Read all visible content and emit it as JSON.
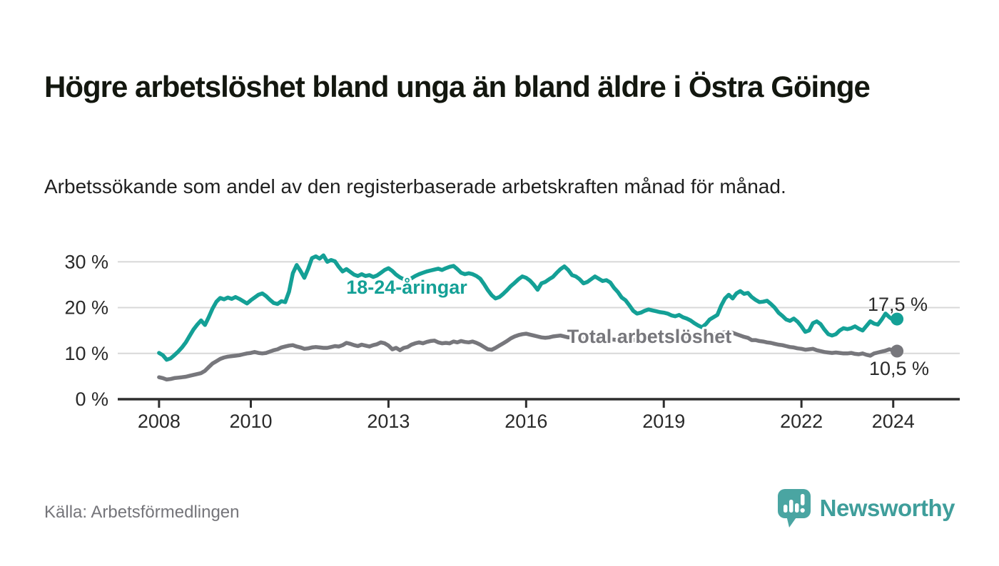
{
  "header": {
    "title": "Högre arbetslöshet bland unga än bland äldre i Östra Göinge",
    "subtitle": "Arbetssökande som andel av den registerbaserade arbetskraften månad för månad."
  },
  "footer": {
    "source": "Källa: Arbetsförmedlingen",
    "brand": "Newsworthy"
  },
  "colors": {
    "youth": "#14a096",
    "total": "#77777c",
    "grid": "#d8d8d8",
    "axis": "#2e2e2e",
    "tick_label": "#2a2a2a",
    "logo_bubble": "#4aa5a2",
    "brand_text": "#3f9e9b",
    "background": "#ffffff"
  },
  "chart_data": {
    "type": "line",
    "title": "",
    "xlabel": "",
    "ylabel": "",
    "grid": "horizontal",
    "legend_position": "inline-labels",
    "x_start": 2008.0,
    "x_step": 0.0833333,
    "xlim": [
      2007.1,
      2025.45
    ],
    "ylim": [
      0,
      35.8
    ],
    "x_ticks": [
      {
        "v": 2008,
        "label": "2008"
      },
      {
        "v": 2010,
        "label": "2010"
      },
      {
        "v": 2013,
        "label": "2013"
      },
      {
        "v": 2016,
        "label": "2016"
      },
      {
        "v": 2019,
        "label": "2019"
      },
      {
        "v": 2022,
        "label": "2022"
      },
      {
        "v": 2024,
        "label": "2024"
      }
    ],
    "y_ticks": [
      {
        "v": 0,
        "label": "0 %"
      },
      {
        "v": 10,
        "label": "10 %"
      },
      {
        "v": 20,
        "label": "20 %"
      },
      {
        "v": 30,
        "label": "30 %"
      }
    ],
    "series": [
      {
        "name": "18-24-åringar",
        "color": "#14a096",
        "end_label": "17,5 %",
        "end_value": 17.5,
        "values": [
          10.1,
          9.6,
          8.6,
          8.9,
          9.6,
          10.4,
          11.3,
          12.4,
          13.8,
          15.2,
          16.3,
          17.2,
          16.2,
          17.9,
          19.8,
          21.3,
          22.1,
          21.8,
          22.2,
          21.9,
          22.3,
          21.9,
          21.4,
          20.9,
          21.6,
          22.2,
          22.8,
          23.1,
          22.5,
          21.7,
          21.0,
          20.8,
          21.4,
          21.2,
          23.5,
          27.5,
          29.3,
          28.0,
          26.5,
          28.5,
          30.8,
          31.2,
          30.7,
          31.4,
          30.0,
          30.4,
          30.1,
          28.9,
          27.9,
          28.4,
          27.8,
          27.2,
          26.9,
          27.3,
          26.9,
          27.1,
          26.7,
          27.0,
          27.6,
          28.2,
          28.6,
          28.0,
          27.2,
          26.6,
          26.2,
          26.0,
          26.4,
          26.9,
          27.3,
          27.6,
          27.9,
          28.1,
          28.3,
          28.5,
          28.2,
          28.6,
          28.9,
          29.1,
          28.4,
          27.6,
          27.3,
          27.5,
          27.3,
          26.9,
          26.3,
          25.1,
          23.8,
          22.7,
          22.0,
          22.3,
          23.0,
          23.8,
          24.7,
          25.4,
          26.2,
          26.8,
          26.5,
          25.9,
          25.0,
          23.9,
          25.3,
          25.6,
          26.2,
          26.7,
          27.6,
          28.4,
          29.0,
          28.2,
          27.1,
          26.8,
          26.2,
          25.3,
          25.6,
          26.2,
          26.8,
          26.3,
          25.8,
          26.0,
          25.5,
          24.3,
          23.4,
          22.2,
          21.6,
          20.5,
          19.3,
          18.7,
          18.9,
          19.3,
          19.6,
          19.4,
          19.2,
          19.0,
          18.9,
          18.7,
          18.3,
          18.1,
          18.4,
          17.9,
          17.6,
          17.2,
          16.6,
          16.1,
          15.7,
          16.4,
          17.4,
          17.9,
          18.4,
          20.4,
          22.0,
          22.8,
          22.0,
          23.1,
          23.6,
          23.0,
          23.2,
          22.3,
          21.7,
          21.2,
          21.3,
          21.5,
          20.8,
          20.0,
          18.9,
          18.2,
          17.4,
          17.1,
          17.6,
          16.9,
          15.9,
          14.7,
          15.0,
          16.6,
          17.0,
          16.4,
          15.2,
          14.2,
          13.9,
          14.2,
          15.0,
          15.5,
          15.3,
          15.5,
          15.9,
          15.4,
          15.0,
          16.0,
          17.0,
          16.5,
          16.3,
          17.4,
          18.7,
          17.9,
          17.3,
          17.5
        ]
      },
      {
        "name": "Total arbetslöshet",
        "color": "#77777c",
        "end_label": "10,5 %",
        "end_value": 10.5,
        "values": [
          4.8,
          4.6,
          4.3,
          4.4,
          4.6,
          4.7,
          4.8,
          4.9,
          5.1,
          5.3,
          5.5,
          5.7,
          6.2,
          7.0,
          7.8,
          8.3,
          8.8,
          9.1,
          9.3,
          9.4,
          9.5,
          9.6,
          9.8,
          10.0,
          10.1,
          10.3,
          10.1,
          10.0,
          10.1,
          10.4,
          10.7,
          10.9,
          11.3,
          11.5,
          11.7,
          11.8,
          11.5,
          11.3,
          11.0,
          11.1,
          11.3,
          11.4,
          11.3,
          11.2,
          11.2,
          11.4,
          11.6,
          11.5,
          11.8,
          12.3,
          12.1,
          11.8,
          11.6,
          11.9,
          11.7,
          11.5,
          11.8,
          12.0,
          12.4,
          12.2,
          11.7,
          10.9,
          11.2,
          10.7,
          11.2,
          11.4,
          11.9,
          12.2,
          12.4,
          12.2,
          12.5,
          12.7,
          12.8,
          12.4,
          12.2,
          12.3,
          12.2,
          12.6,
          12.4,
          12.7,
          12.5,
          12.4,
          12.6,
          12.3,
          11.9,
          11.4,
          10.9,
          10.8,
          11.2,
          11.7,
          12.2,
          12.7,
          13.3,
          13.7,
          14.0,
          14.2,
          14.3,
          14.1,
          13.9,
          13.7,
          13.5,
          13.4,
          13.5,
          13.7,
          13.8,
          13.9,
          13.7,
          13.5,
          13.5,
          13.4,
          13.3,
          13.2,
          13.3,
          13.4,
          13.5,
          13.4,
          13.3,
          13.2,
          13.1,
          13.0,
          12.9,
          12.8,
          12.7,
          12.8,
          12.9,
          13.0,
          12.9,
          12.8,
          12.9,
          13.0,
          13.1,
          13.2,
          13.2,
          13.3,
          13.3,
          13.2,
          13.3,
          13.4,
          13.3,
          13.2,
          13.3,
          13.4,
          13.5,
          13.7,
          13.9,
          14.1,
          14.3,
          14.5,
          14.6,
          14.7,
          14.5,
          14.2,
          13.9,
          13.6,
          13.4,
          12.9,
          12.9,
          12.7,
          12.6,
          12.4,
          12.3,
          12.1,
          11.9,
          11.8,
          11.6,
          11.4,
          11.3,
          11.1,
          11.0,
          10.8,
          10.9,
          11.0,
          10.7,
          10.5,
          10.3,
          10.2,
          10.1,
          10.2,
          10.1,
          10.0,
          10.0,
          10.1,
          9.9,
          9.8,
          10.0,
          9.7,
          9.5,
          10.0,
          10.2,
          10.4,
          10.6,
          10.9,
          10.7,
          10.5
        ]
      }
    ]
  }
}
